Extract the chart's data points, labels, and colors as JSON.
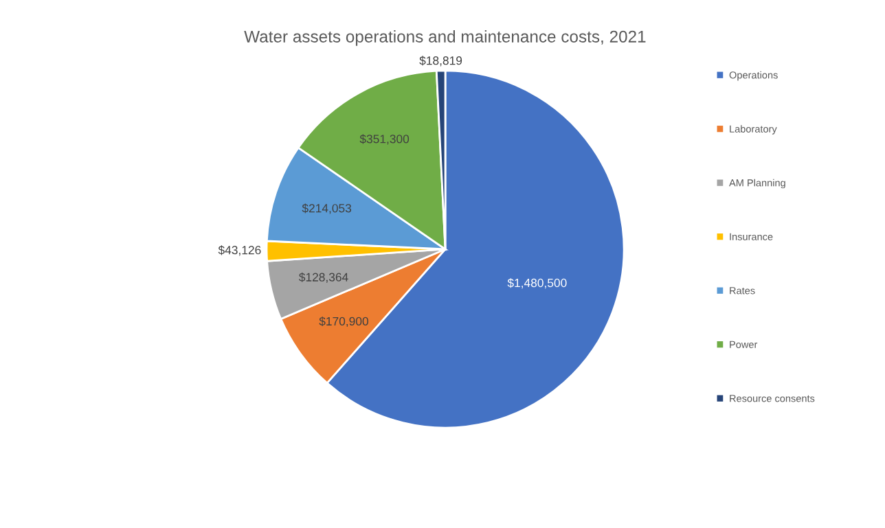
{
  "chart_data": {
    "type": "pie",
    "title": "Water assets operations and maintenance costs, 2021",
    "categories": [
      "Operations",
      "Laboratory",
      "AM Planning",
      "Insurance",
      "Rates",
      "Power",
      "Resource consents"
    ],
    "values": [
      1480500,
      170900,
      128364,
      43126,
      214053,
      351300,
      18819
    ],
    "value_labels": [
      "$1,480,500",
      "$170,900",
      "$128,364",
      "$43,126",
      "$214,053",
      "$351,300",
      "$18,819"
    ],
    "colors": [
      "#4472c4",
      "#ed7d31",
      "#a5a5a5",
      "#ffc000",
      "#5b9bd5",
      "#70ad47",
      "#264478"
    ],
    "legend": "right"
  }
}
